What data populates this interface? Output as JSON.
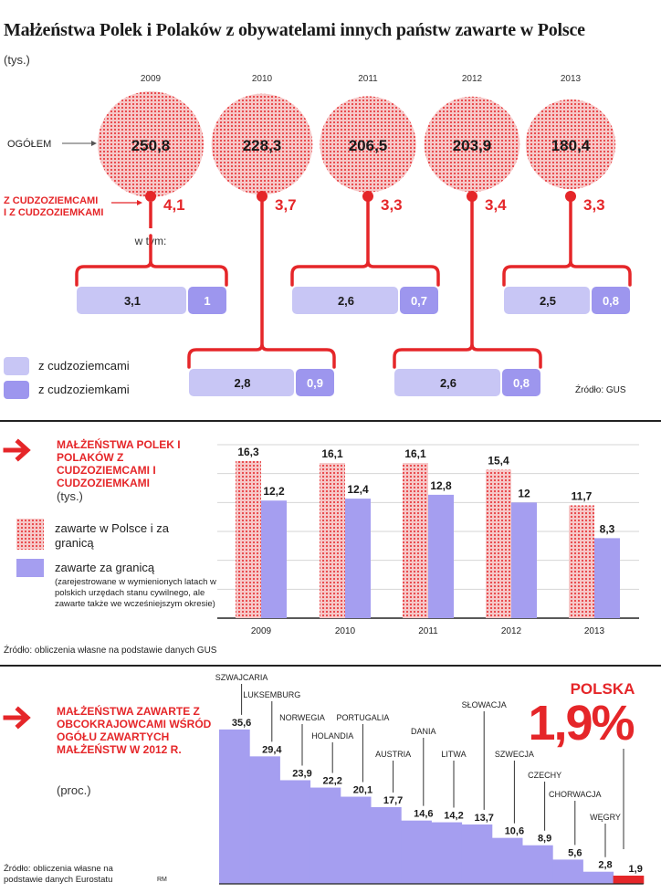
{
  "header": {
    "title": "Małżeństwa Polek i Polaków z obywatelami innych państw zawarte w Polsce",
    "unit": "(tys.)"
  },
  "colors": {
    "red": "#e52629",
    "light_purple": "#c8c6f5",
    "purple": "#9d96ee",
    "bar_purple": "#a59ef0"
  },
  "chart_data": [
    {
      "type": "bubble-breakdown",
      "years": [
        "2009",
        "2010",
        "2011",
        "2012",
        "2013"
      ],
      "total_label": "OGÓŁEM",
      "foreign_label": "Z CUDZOZIEMCAMI I Z CUDZOZIEMKAMI",
      "of_which_label": "w tym:",
      "totals": [
        250.8,
        228.3,
        206.5,
        203.9,
        180.4
      ],
      "totals_text": [
        "250,8",
        "228,3",
        "206,5",
        "203,9",
        "180,4"
      ],
      "foreign": [
        4.1,
        3.7,
        3.3,
        3.4,
        3.3
      ],
      "foreign_text": [
        "4,1",
        "3,7",
        "3,3",
        "3,4",
        "3,3"
      ],
      "with_foreign_men_text": [
        "3,1",
        "2,8",
        "2,6",
        "2,6",
        "2,5"
      ],
      "with_foreign_women_text": [
        "1",
        "0,9",
        "0,7",
        "0,8",
        "0,8"
      ],
      "legend": [
        "z cudzoziemcami",
        "z cudzoziemkami"
      ],
      "source": "Źródło: GUS"
    },
    {
      "type": "bar",
      "title": "MAŁŻEŃSTWA POLEK I POLAKÓW Z CUDZOZIEMCAMI I CUDZOZIEMKAMI",
      "unit": "(tys.)",
      "categories": [
        "2009",
        "2010",
        "2011",
        "2012",
        "2013"
      ],
      "series": [
        {
          "name": "zawarte w Polsce i za granicą",
          "values": [
            16.3,
            16.1,
            16.1,
            15.4,
            11.7
          ],
          "labels": [
            "16,3",
            "16,1",
            "16,1",
            "15,4",
            "11,7"
          ]
        },
        {
          "name": "zawarte za granicą",
          "values": [
            12.2,
            12.4,
            12.8,
            12,
            8.3
          ],
          "labels": [
            "12,2",
            "12,4",
            "12,8",
            "12",
            "8,3"
          ]
        }
      ],
      "legend_1": "zawarte w Polsce i za granicą",
      "legend_2": "zawarte za granicą",
      "legend_note": "(zarejestrowane w wymienionych latach w polskich urzędach stanu cywilnego, ale zawarte także we wcześniejszym okresie)",
      "source": "Źródło: obliczenia własne na podstawie danych GUS",
      "ylim": [
        0,
        18
      ]
    },
    {
      "type": "bar",
      "title": "MAŁŻEŃSTWA ZAWARTE Z OBCOKRAJOWCAMI WŚRÓD OGÓŁU ZAWARTYCH MAŁŻEŃSTW W 2012 R.",
      "unit": "(proc.)",
      "categories": [
        "SZWAJCARIA",
        "LUKSEMBURG",
        "NORWEGIA",
        "HOLANDIA",
        "PORTUGALIA",
        "AUSTRIA",
        "DANIA",
        "LITWA",
        "SŁOWACJA",
        "SZWECJA",
        "CZECHY",
        "CHORWACJA",
        "WĘGRY",
        "POLSKA"
      ],
      "values": [
        35.6,
        29.4,
        23.9,
        22.2,
        20.1,
        17.7,
        14.6,
        14.2,
        13.7,
        10.6,
        8.9,
        5.6,
        2.8,
        1.9
      ],
      "labels": [
        "35,6",
        "29,4",
        "23,9",
        "22,2",
        "20,1",
        "17,7",
        "14,6",
        "14,2",
        "13,7",
        "10,6",
        "8,9",
        "5,6",
        "2,8",
        "1,9"
      ],
      "highlight": {
        "name": "POLSKA",
        "value_text": "1,9%"
      },
      "source": "Źródło: obliczenia własne na podstawie danych Eurostatu",
      "credit": "RM",
      "ylim": [
        0,
        40
      ]
    }
  ]
}
